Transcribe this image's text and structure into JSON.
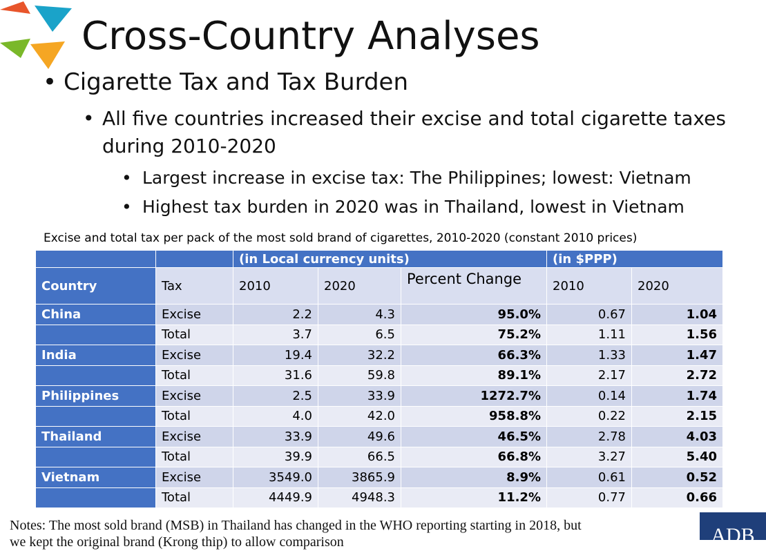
{
  "colors": {
    "header_blue": "#4472c4",
    "row_dark": "#cfd5ea",
    "row_light": "#e9ebf5",
    "logo": [
      "#e8552b",
      "#1aa3c9",
      "#7ab829",
      "#f5a623"
    ]
  },
  "slide": {
    "title": "Cross-Country Analyses",
    "bullet1": "Cigarette Tax and Tax Burden",
    "bullet2": "All five countries increased their excise and total cigarette taxes during 2010-2020",
    "bullet3a": "Largest increase in excise tax: The Philippines; lowest: Vietnam",
    "bullet3b": "Highest tax burden in 2020 was in Thailand, lowest in Vietnam",
    "table_caption": "Excise and total tax per pack of the most sold brand of cigarettes, 2010-2020 (constant 2010 prices)",
    "notes_line1": "Notes: The most sold brand (MSB) in Thailand has changed in the WHO reporting starting in 2018, but",
    "notes_line2": "we kept the original brand (Krong thip) to allow comparison",
    "logo_text": "ADB"
  },
  "table": {
    "group_local": "(in Local currency units)",
    "group_ppp": "(in $PPP)",
    "headers": {
      "country": "Country",
      "tax": "Tax",
      "y2010": "2010",
      "y2020": "2020",
      "pct": "Percent Change",
      "p2010": "2010",
      "p2020": "2020"
    },
    "rows": [
      {
        "country": "China",
        "tax": "Excise",
        "lc2010": "2.2",
        "lc2020": "4.3",
        "pct": "95.0%",
        "ppp2010": "0.67",
        "ppp2020": "1.04"
      },
      {
        "country": "",
        "tax": "Total",
        "lc2010": "3.7",
        "lc2020": "6.5",
        "pct": "75.2%",
        "ppp2010": "1.11",
        "ppp2020": "1.56"
      },
      {
        "country": "India",
        "tax": "Excise",
        "lc2010": "19.4",
        "lc2020": "32.2",
        "pct": "66.3%",
        "ppp2010": "1.33",
        "ppp2020": "1.47"
      },
      {
        "country": "",
        "tax": "Total",
        "lc2010": "31.6",
        "lc2020": "59.8",
        "pct": "89.1%",
        "ppp2010": "2.17",
        "ppp2020": "2.72"
      },
      {
        "country": "Philippines",
        "tax": "Excise",
        "lc2010": "2.5",
        "lc2020": "33.9",
        "pct": "1272.7%",
        "ppp2010": "0.14",
        "ppp2020": "1.74"
      },
      {
        "country": "",
        "tax": "Total",
        "lc2010": "4.0",
        "lc2020": "42.0",
        "pct": "958.8%",
        "ppp2010": "0.22",
        "ppp2020": "2.15"
      },
      {
        "country": "Thailand",
        "tax": "Excise",
        "lc2010": "33.9",
        "lc2020": "49.6",
        "pct": "46.5%",
        "ppp2010": "2.78",
        "ppp2020": "4.03"
      },
      {
        "country": "",
        "tax": "Total",
        "lc2010": "39.9",
        "lc2020": "66.5",
        "pct": "66.8%",
        "ppp2010": "3.27",
        "ppp2020": "5.40"
      },
      {
        "country": "Vietnam",
        "tax": "Excise",
        "lc2010": "3549.0",
        "lc2020": "3865.9",
        "pct": "8.9%",
        "ppp2010": "0.61",
        "ppp2020": "0.52"
      },
      {
        "country": "",
        "tax": "Total",
        "lc2010": "4449.9",
        "lc2020": "4948.3",
        "pct": "11.2%",
        "ppp2010": "0.77",
        "ppp2020": "0.66"
      }
    ]
  }
}
